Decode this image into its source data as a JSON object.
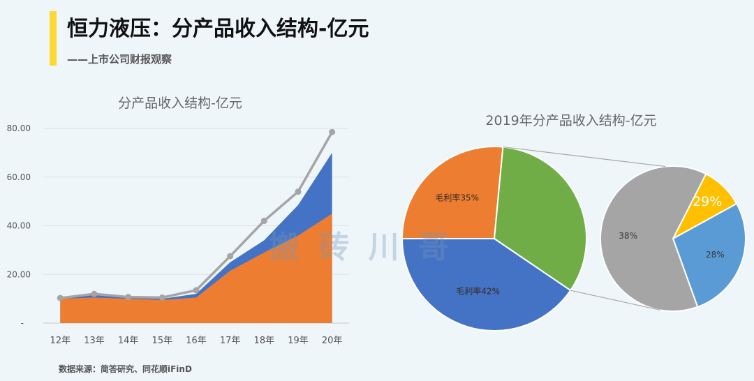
{
  "header": {
    "title": "恒力液压：分产品收入结构-亿元",
    "subtitle": "——上市公司财报观察"
  },
  "source": "数据来源：简答研究、同花顺iFinD",
  "watermark": "搬 砖 川 哥",
  "colors": {
    "background": "#eef6fa",
    "accent": "#fdd835",
    "orange": "#ed7d31",
    "blue": "#4472c4",
    "gray": "#a5a5a5",
    "green": "#70ad47",
    "yellow": "#ffc000",
    "lightblue": "#5b9bd5"
  },
  "chart_data": [
    {
      "type": "area",
      "title": "分产品收入结构-亿元",
      "categories": [
        "12年",
        "13年",
        "14年",
        "15年",
        "16年",
        "17年",
        "18年",
        "19年",
        "20年"
      ],
      "ylim": [
        0,
        80
      ],
      "yticks": [
        "-",
        "20.00",
        "40.00",
        "60.00",
        "80.00"
      ],
      "grid": true,
      "series": [
        {
          "kind": "area",
          "color": "#ed7d31",
          "values": [
            10,
            10.5,
            10,
            9.5,
            10.5,
            21.5,
            29,
            36,
            45
          ]
        },
        {
          "kind": "area",
          "color": "#4472c4",
          "values": [
            10.2,
            11.5,
            10.4,
            10,
            12,
            25,
            34,
            48.5,
            70
          ]
        },
        {
          "kind": "line",
          "color": "#a5a5a5",
          "values": [
            10.3,
            12,
            10.7,
            10.5,
            13.5,
            27.5,
            42,
            54,
            78.5
          ]
        }
      ]
    },
    {
      "type": "pie",
      "title": "2019年分产品收入结构-亿元",
      "main_pie": [
        {
          "label": "毛利率35%",
          "value": 26.5,
          "color": "#ed7d31"
        },
        {
          "label": "",
          "value": 33,
          "color": "#70ad47"
        },
        {
          "label": "毛利率42%",
          "value": 40.5,
          "color": "#4472c4"
        }
      ],
      "secondary_pie": [
        {
          "label": "29%",
          "value": 9.5,
          "color": "#ffc000"
        },
        {
          "label": "28%",
          "value": 27.5,
          "color": "#5b9bd5"
        },
        {
          "label": "38%",
          "value": 63,
          "color": "#a5a5a5"
        }
      ]
    }
  ]
}
